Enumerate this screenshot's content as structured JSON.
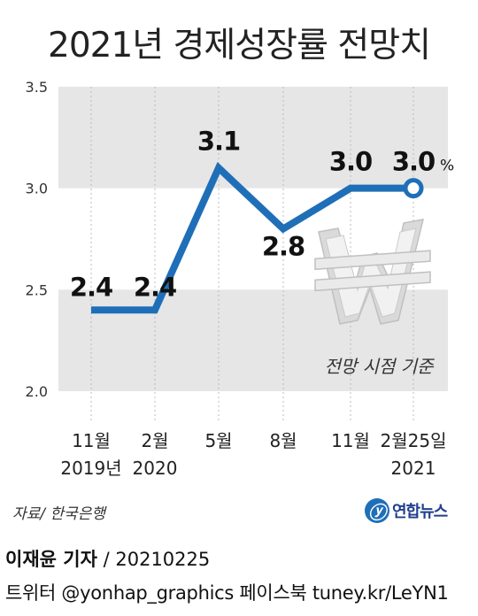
{
  "title": "2021년 경제성장률 전망치",
  "chart_data": {
    "type": "line",
    "ylim": [
      2.0,
      3.5
    ],
    "yticks": [
      "3.5",
      "3.0",
      "2.5",
      "2.0"
    ],
    "categories": [
      {
        "top": "11월",
        "bottom": "2019년"
      },
      {
        "top": "2월",
        "bottom": "2020"
      },
      {
        "top": "5월",
        "bottom": ""
      },
      {
        "top": "8월",
        "bottom": ""
      },
      {
        "top": "11월",
        "bottom": ""
      },
      {
        "top": "2월25일",
        "bottom": "2021"
      }
    ],
    "values": [
      2.4,
      2.4,
      3.1,
      2.8,
      3.0,
      3.0
    ],
    "data_labels": [
      "2.4",
      "2.4",
      "3.1",
      "2.8",
      "3.0",
      "3.0"
    ],
    "unit": "%",
    "annotation": "전망 시점 기준",
    "line_color": "#1f6fb8",
    "band_color": "#e6e6e6"
  },
  "source": "자료/ 한국은행",
  "logo": {
    "mark": "ⓨ",
    "text": "연합뉴스"
  },
  "credit": {
    "name": "이재윤 기자",
    "sep": " / ",
    "date": "20210225"
  },
  "social": "트위터 @yonhap_graphics  페이스북 tuney.kr/LeYN1"
}
